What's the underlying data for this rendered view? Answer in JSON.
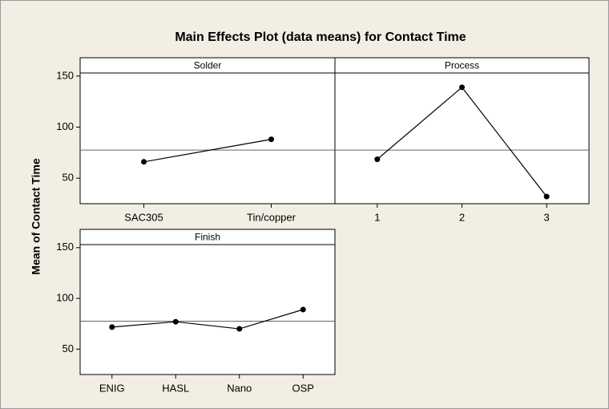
{
  "title": "Main Effects Plot (data means) for Contact Time",
  "ylabel": "Mean of Contact Time",
  "chart_data": [
    {
      "type": "line",
      "title": "Solder",
      "categories": [
        "SAC305",
        "Tin/copper"
      ],
      "values": [
        66,
        88
      ],
      "color": "#000000",
      "reference_line": 77.5,
      "ylim": [
        25,
        153
      ],
      "yticks": [
        50,
        100,
        150
      ]
    },
    {
      "type": "line",
      "title": "Process",
      "categories": [
        "1",
        "2",
        "3"
      ],
      "values": [
        68.5,
        139,
        32
      ],
      "color": "#000000",
      "reference_line": 77.5,
      "ylim": [
        25,
        153
      ],
      "yticks": []
    },
    {
      "type": "line",
      "title": "Finish",
      "categories": [
        "ENIG",
        "HASL",
        "Nano",
        "OSP"
      ],
      "values": [
        71.7,
        77,
        70,
        89
      ],
      "color": "#000000",
      "reference_line": 77.5,
      "ylim": [
        25,
        153
      ],
      "yticks": [
        50,
        100,
        150
      ]
    }
  ]
}
